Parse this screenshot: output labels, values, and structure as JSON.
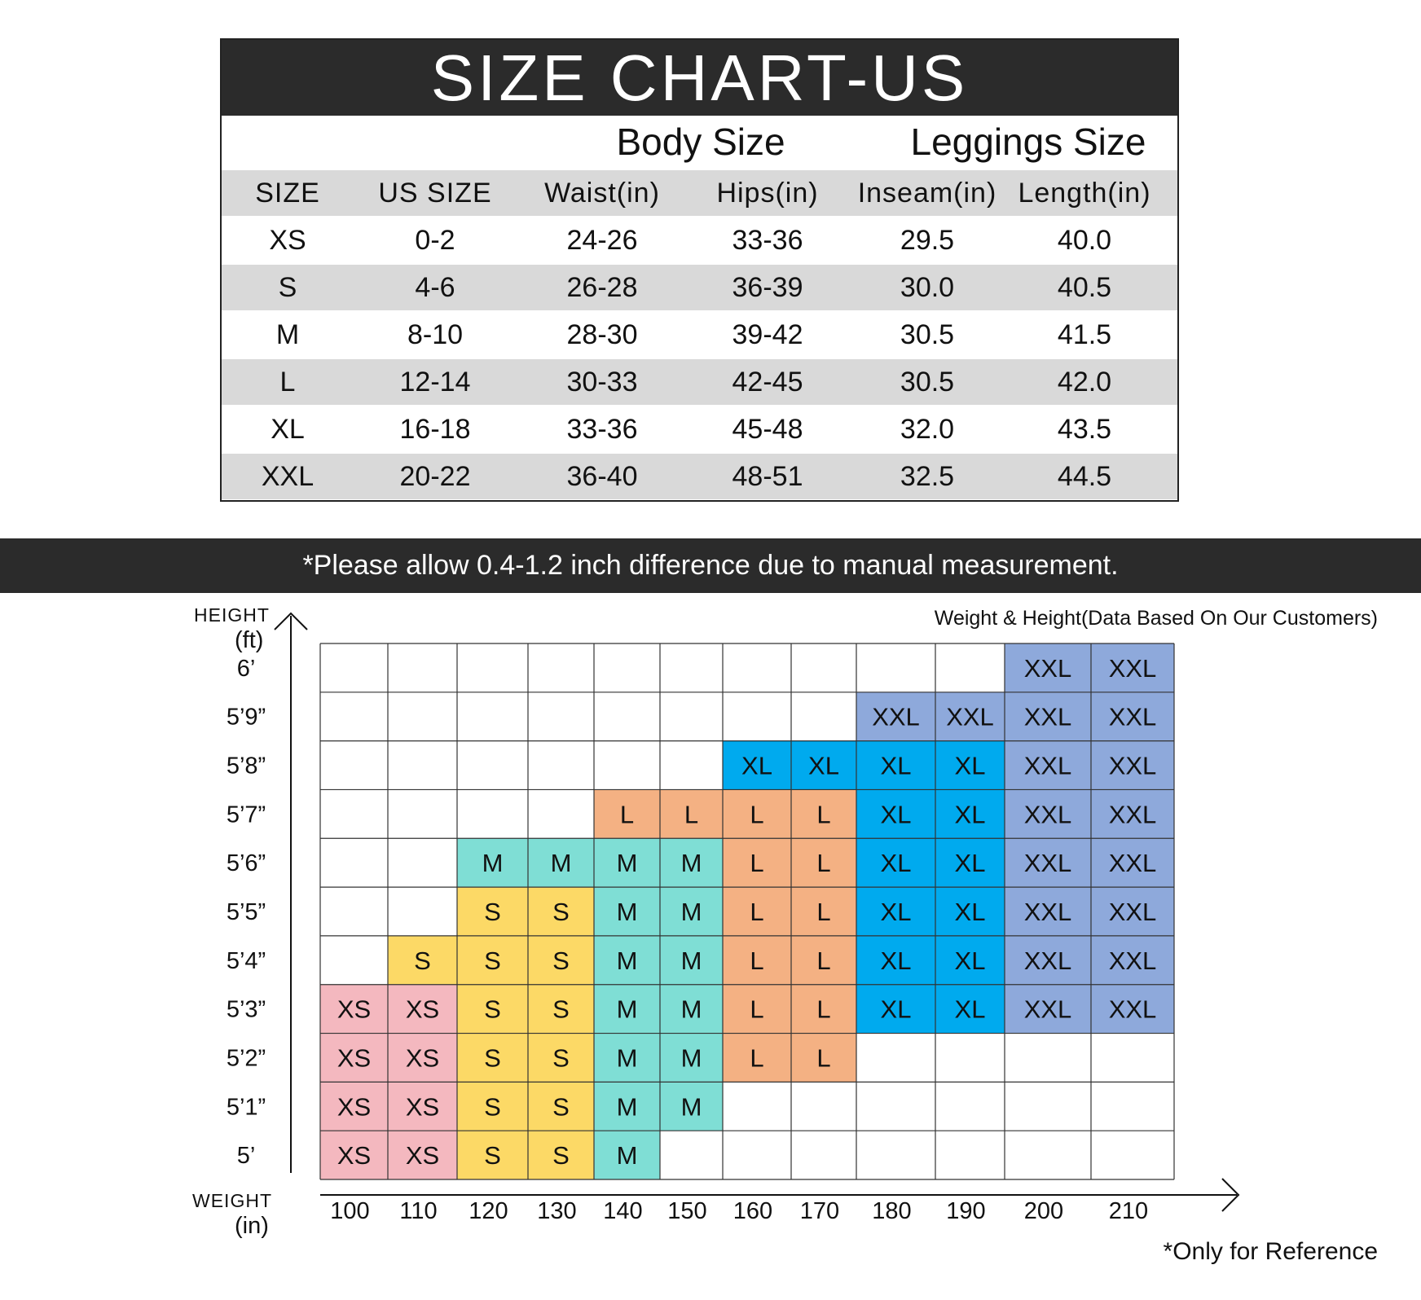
{
  "table": {
    "title": "SIZE CHART-US",
    "group_body": "Body Size",
    "group_leggings": "Leggings Size",
    "headers": [
      "SIZE",
      "US SIZE",
      "Waist(in)",
      "Hips(in)",
      "Inseam(in)",
      "Length(in)"
    ],
    "rows": [
      [
        "XS",
        "0-2",
        "24-26",
        "33-36",
        "29.5",
        "40.0"
      ],
      [
        "S",
        "4-6",
        "26-28",
        "36-39",
        "30.0",
        "40.5"
      ],
      [
        "M",
        "8-10",
        "28-30",
        "39-42",
        "30.5",
        "41.5"
      ],
      [
        "L",
        "12-14",
        "30-33",
        "42-45",
        "30.5",
        "42.0"
      ],
      [
        "XL",
        "16-18",
        "33-36",
        "45-48",
        "32.0",
        "43.5"
      ],
      [
        "XXL",
        "20-22",
        "36-40",
        "48-51",
        "32.5",
        "44.5"
      ]
    ]
  },
  "note": "*Please allow 0.4-1.2 inch difference due to manual measurement.",
  "chart_data": {
    "type": "heatmap",
    "title": "Weight & Height(Data Based On Our Customers)",
    "ylabel_top": "HEIGHT",
    "ylabel_unit": "(ft)",
    "xlabel_top": "WEIGHT",
    "xlabel_unit": "(in)",
    "x": [
      "100",
      "110",
      "120",
      "130",
      "140",
      "150",
      "160",
      "170",
      "180",
      "190",
      "200",
      "210"
    ],
    "y": [
      "6’",
      "5’9”",
      "5’8”",
      "5’7”",
      "5’6”",
      "5’5”",
      "5’4”",
      "5’3”",
      "5’2”",
      "5’1”",
      "5’"
    ],
    "cells": [
      [
        "",
        "",
        "",
        "",
        "",
        "",
        "",
        "",
        "",
        "",
        "XXL",
        "XXL"
      ],
      [
        "",
        "",
        "",
        "",
        "",
        "",
        "",
        "",
        "XXL",
        "XXL",
        "XXL",
        "XXL"
      ],
      [
        "",
        "",
        "",
        "",
        "",
        "",
        "XL",
        "XL",
        "XL",
        "XL",
        "XXL",
        "XXL"
      ],
      [
        "",
        "",
        "",
        "",
        "L",
        "L",
        "L",
        "L",
        "XL",
        "XL",
        "XXL",
        "XXL"
      ],
      [
        "",
        "",
        "M",
        "M",
        "M",
        "M",
        "L",
        "L",
        "XL",
        "XL",
        "XXL",
        "XXL"
      ],
      [
        "",
        "",
        "S",
        "S",
        "M",
        "M",
        "L",
        "L",
        "XL",
        "XL",
        "XXL",
        "XXL"
      ],
      [
        "",
        "S",
        "S",
        "S",
        "M",
        "M",
        "L",
        "L",
        "XL",
        "XL",
        "XXL",
        "XXL"
      ],
      [
        "XS",
        "XS",
        "S",
        "S",
        "M",
        "M",
        "L",
        "L",
        "XL",
        "XL",
        "XXL",
        "XXL"
      ],
      [
        "XS",
        "XS",
        "S",
        "S",
        "M",
        "M",
        "L",
        "L",
        "",
        "",
        "",
        ""
      ],
      [
        "XS",
        "XS",
        "S",
        "S",
        "M",
        "M",
        "",
        "",
        "",
        "",
        "",
        ""
      ],
      [
        "XS",
        "XS",
        "S",
        "S",
        "M",
        "",
        "",
        "",
        "",
        "",
        "",
        ""
      ]
    ],
    "colors": {
      "XS": "#f4b8bf",
      "S": "#fcd966",
      "M": "#7fded5",
      "L": "#f4b183",
      "XL": "#00aaee",
      "XXL": "#8ea9db"
    },
    "reference_note": "*Only for Reference"
  }
}
